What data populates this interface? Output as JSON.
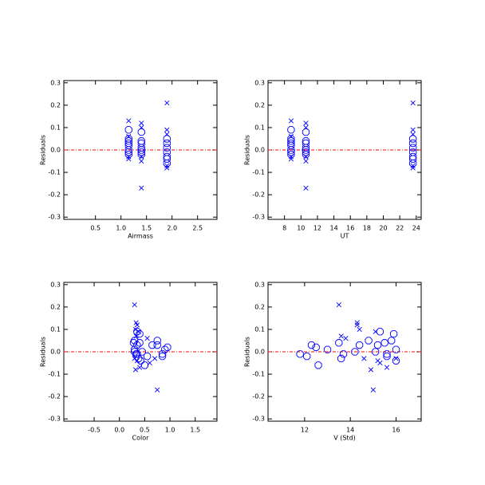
{
  "chart_data": [
    {
      "type": "scatter",
      "xlabel": "Airmass",
      "ylabel": "Residuals",
      "xlim": [
        -0.12,
        2.88
      ],
      "ylim": [
        -0.31,
        0.31
      ],
      "xticks": [
        0.5,
        {
          "value": 1,
          "label": "1.0"
        },
        1.5,
        {
          "value": 2,
          "label": "2.0"
        },
        2.5
      ],
      "yticks": [
        -0.3,
        -0.2,
        -0.1,
        {
          "value": 0,
          "label": "0.0"
        },
        0.1,
        0.2,
        0.3
      ],
      "ref_line": {
        "y": 0,
        "color": "#ff0000"
      },
      "series": [
        {
          "marker": "circle",
          "color": "#0000ff",
          "x": [
            1.15,
            1.15,
            1.15,
            1.15,
            1.15,
            1.15,
            1.15,
            1.15,
            1.4,
            1.4,
            1.4,
            1.4,
            1.4,
            1.4,
            1.4,
            1.9,
            1.9,
            1.9,
            1.9,
            1.9,
            1.9,
            1.9
          ],
          "values": [
            0.09,
            0.05,
            0.04,
            0.03,
            0.02,
            0.0,
            -0.01,
            -0.02,
            0.08,
            0.04,
            0.03,
            0.01,
            0.0,
            -0.01,
            -0.02,
            0.05,
            0.03,
            0.01,
            -0.01,
            -0.03,
            -0.04,
            -0.06
          ]
        },
        {
          "marker": "x",
          "color": "#0000ff",
          "x": [
            1.15,
            1.15,
            1.15,
            1.15,
            1.4,
            1.4,
            1.4,
            1.4,
            1.4,
            1.9,
            1.9,
            1.9,
            1.9,
            1.9
          ],
          "values": [
            0.13,
            0.06,
            -0.03,
            -0.04,
            0.12,
            0.1,
            -0.03,
            -0.05,
            -0.17,
            0.21,
            0.09,
            0.07,
            -0.07,
            -0.08
          ]
        }
      ]
    },
    {
      "type": "scatter",
      "xlabel": "UT",
      "ylabel": "Residuals",
      "xlim": [
        6,
        24.6
      ],
      "ylim": [
        -0.31,
        0.31
      ],
      "xticks": [
        8,
        10,
        12,
        14,
        16,
        18,
        20,
        22,
        24
      ],
      "yticks": [
        -0.3,
        -0.2,
        -0.1,
        {
          "value": 0,
          "label": "0.0"
        },
        0.1,
        0.2,
        0.3
      ],
      "ref_line": {
        "y": 0,
        "color": "#ff0000"
      },
      "series": [
        {
          "marker": "circle",
          "color": "#0000ff",
          "x": [
            8.8,
            8.8,
            8.8,
            8.8,
            8.8,
            8.8,
            8.8,
            8.8,
            10.6,
            10.6,
            10.6,
            10.6,
            10.6,
            10.6,
            10.6,
            23.6,
            23.6,
            23.6,
            23.6,
            23.6,
            23.6,
            23.6
          ],
          "values": [
            0.09,
            0.05,
            0.04,
            0.03,
            0.02,
            0.0,
            -0.01,
            -0.02,
            0.08,
            0.04,
            0.03,
            0.01,
            0.0,
            -0.01,
            -0.02,
            0.05,
            0.03,
            0.01,
            -0.01,
            -0.03,
            -0.04,
            -0.06
          ]
        },
        {
          "marker": "x",
          "color": "#0000ff",
          "x": [
            8.8,
            8.8,
            8.8,
            8.8,
            10.6,
            10.6,
            10.6,
            10.6,
            10.6,
            23.6,
            23.6,
            23.6,
            23.6,
            23.6
          ],
          "values": [
            0.13,
            0.06,
            -0.03,
            -0.04,
            0.12,
            0.1,
            -0.03,
            -0.05,
            -0.17,
            0.21,
            0.09,
            0.07,
            -0.07,
            -0.08
          ]
        }
      ]
    },
    {
      "type": "scatter",
      "xlabel": "Color",
      "ylabel": "Residuals",
      "xlim": [
        -1.1,
        1.93
      ],
      "ylim": [
        -0.31,
        0.31
      ],
      "xticks": [
        -0.5,
        {
          "value": 0,
          "label": "0.0"
        },
        0.5,
        {
          "value": 1,
          "label": "1.0"
        },
        1.5
      ],
      "yticks": [
        -0.3,
        -0.2,
        -0.1,
        {
          "value": 0,
          "label": "0.0"
        },
        0.1,
        0.2,
        0.3
      ],
      "ref_line": {
        "y": 0,
        "color": "#ff0000"
      },
      "series": [
        {
          "marker": "circle",
          "color": "#0000ff",
          "x": [
            0.35,
            0.3,
            0.4,
            0.75,
            0.95,
            0.3,
            0.35,
            0.85,
            0.4,
            0.28,
            0.65,
            0.9,
            0.45,
            0.33,
            0.55,
            0.75,
            0.35,
            0.3,
            0.85,
            0.38,
            0.42,
            0.5
          ],
          "values": [
            0.09,
            0.05,
            0.04,
            0.03,
            0.02,
            0.0,
            -0.01,
            -0.02,
            0.08,
            0.04,
            0.03,
            0.01,
            0.0,
            -0.01,
            -0.02,
            0.05,
            0.03,
            0.01,
            -0.01,
            -0.03,
            -0.04,
            -0.06
          ]
        },
        {
          "marker": "x",
          "color": "#0000ff",
          "x": [
            0.33,
            0.55,
            0.3,
            0.35,
            0.35,
            0.32,
            0.7,
            0.6,
            0.75,
            0.3,
            0.38,
            0.33,
            0.4,
            0.32
          ],
          "values": [
            0.13,
            0.06,
            -0.03,
            -0.04,
            0.12,
            0.1,
            -0.03,
            -0.05,
            -0.17,
            0.21,
            0.09,
            0.07,
            -0.07,
            -0.08
          ]
        }
      ]
    },
    {
      "type": "scatter",
      "xlabel": "V (Std)",
      "ylabel": "Residuals",
      "xlim": [
        10.4,
        17.1
      ],
      "ylim": [
        -0.31,
        0.31
      ],
      "xticks": [
        12,
        14,
        16
      ],
      "yticks": [
        -0.3,
        -0.2,
        -0.1,
        {
          "value": 0,
          "label": "0.0"
        },
        0.1,
        0.2,
        0.3
      ],
      "ref_line": {
        "y": 0,
        "color": "#ff0000"
      },
      "series": [
        {
          "marker": "circle",
          "color": "#0000ff",
          "x": [
            15.3,
            15.8,
            15.5,
            12.3,
            12.5,
            14.2,
            13.7,
            15.6,
            15.9,
            13.5,
            14.4,
            13,
            15.1,
            11.8,
            12.1,
            14.8,
            15.2,
            16,
            15.6,
            13.6,
            16,
            12.6
          ],
          "values": [
            0.09,
            0.05,
            0.04,
            0.03,
            0.02,
            0.0,
            -0.01,
            -0.02,
            0.08,
            0.04,
            0.03,
            0.01,
            0.0,
            -0.01,
            -0.02,
            0.05,
            0.03,
            0.01,
            -0.01,
            -0.03,
            -0.04,
            -0.06
          ]
        },
        {
          "marker": "x",
          "color": "#0000ff",
          "x": [
            14.3,
            13.8,
            14.6,
            15.2,
            14.3,
            14.4,
            16,
            15.3,
            15,
            13.5,
            15.1,
            13.6,
            15.6,
            14.9
          ],
          "values": [
            0.13,
            0.06,
            -0.03,
            -0.04,
            0.12,
            0.1,
            -0.03,
            -0.05,
            -0.17,
            0.21,
            0.09,
            0.07,
            -0.07,
            -0.08
          ]
        }
      ]
    }
  ]
}
